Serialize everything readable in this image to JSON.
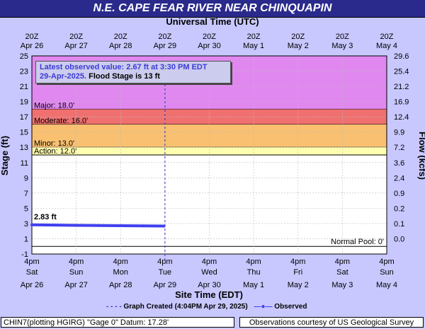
{
  "title": "N.E. CAPE FEAR RIVER NEAR CHINQUAPIN",
  "top_axis_title": "Universal Time (UTC)",
  "latest_box": {
    "line1": "Latest observed value: 2.67 ft at 3:30 PM EDT",
    "line2_date": "29-Apr-2025.",
    "line2_flood": "Flood Stage is 13 ft"
  },
  "legend": {
    "created": "Graph Created (4:04PM Apr 29, 2025)",
    "observed": "Observed"
  },
  "footer_left": "CHIN7(plotting HGIRG) \"Gage 0\" Datum: 17.28'",
  "footer_right": "Observations courtesy of US Geological Survey",
  "colors": {
    "observed_line": "#4040f0",
    "major": "#e088f0",
    "moderate": "#f07070",
    "minor": "#f8c070",
    "action": "#ffffb0",
    "background": "#ffffff",
    "header": "#2a2a8c"
  },
  "chart_data": {
    "type": "line",
    "x_start": "Apr 26 4pm EDT",
    "x_end": "May 4 4pm EDT",
    "xlabel": "Site Time (EDT)",
    "ylabel": "Stage (ft)",
    "y2label": "Flow (kcfs)",
    "ylim": [
      -1,
      25
    ],
    "y_ticks": [
      -1,
      1,
      3,
      5,
      7,
      9,
      11,
      13,
      15,
      17,
      19,
      21,
      23,
      25
    ],
    "y2_ticks": [
      "0.0",
      "0.1",
      "0.2",
      "0.9",
      "2.4",
      "3.6",
      "7.2",
      "9.9",
      "12.4",
      "16.9",
      "21.2",
      "25.4",
      "29.6"
    ],
    "bottom_ticks": [
      {
        "t": "4pm",
        "w": "Sat",
        "d": "Apr 26"
      },
      {
        "t": "4pm",
        "w": "Sun",
        "d": "Apr 27"
      },
      {
        "t": "4pm",
        "w": "Mon",
        "d": "Apr 28"
      },
      {
        "t": "4pm",
        "w": "Tue",
        "d": "Apr 29"
      },
      {
        "t": "4pm",
        "w": "Wed",
        "d": "Apr 30"
      },
      {
        "t": "4pm",
        "w": "Thu",
        "d": "May 1"
      },
      {
        "t": "4pm",
        "w": "Fri",
        "d": "May 2"
      },
      {
        "t": "4pm",
        "w": "Sat",
        "d": "May 3"
      },
      {
        "t": "4pm",
        "w": "Sun",
        "d": "May 4"
      }
    ],
    "top_ticks": [
      {
        "t": "20Z",
        "d": "Apr 26"
      },
      {
        "t": "20Z",
        "d": "Apr 27"
      },
      {
        "t": "20Z",
        "d": "Apr 28"
      },
      {
        "t": "20Z",
        "d": "Apr 29"
      },
      {
        "t": "20Z",
        "d": "Apr 30"
      },
      {
        "t": "20Z",
        "d": "May 1"
      },
      {
        "t": "20Z",
        "d": "May 2"
      },
      {
        "t": "20Z",
        "d": "May 3"
      },
      {
        "t": "20Z",
        "d": "May 4"
      }
    ],
    "flood_categories": [
      {
        "name": "Major",
        "label": "Major: 18.0'",
        "from": 18.0,
        "to": 25.0
      },
      {
        "name": "Moderate",
        "label": "Moderate: 16.0'",
        "from": 16.0,
        "to": 18.0
      },
      {
        "name": "Minor",
        "label": "Minor: 13.0'",
        "from": 13.0,
        "to": 16.0
      },
      {
        "name": "Action",
        "label": "Action: 12.0'",
        "from": 12.0,
        "to": 13.0
      }
    ],
    "normal_pool": {
      "label": "Normal Pool: 0'",
      "value": 0
    },
    "graph_created_day": 3.0,
    "series": [
      {
        "name": "Observed",
        "x_days": [
          0.0,
          0.5,
          1.0,
          1.5,
          2.0,
          2.5,
          2.98
        ],
        "y": [
          2.83,
          2.8,
          2.76,
          2.74,
          2.72,
          2.69,
          2.67
        ],
        "start_label": "2.83 ft"
      }
    ]
  }
}
